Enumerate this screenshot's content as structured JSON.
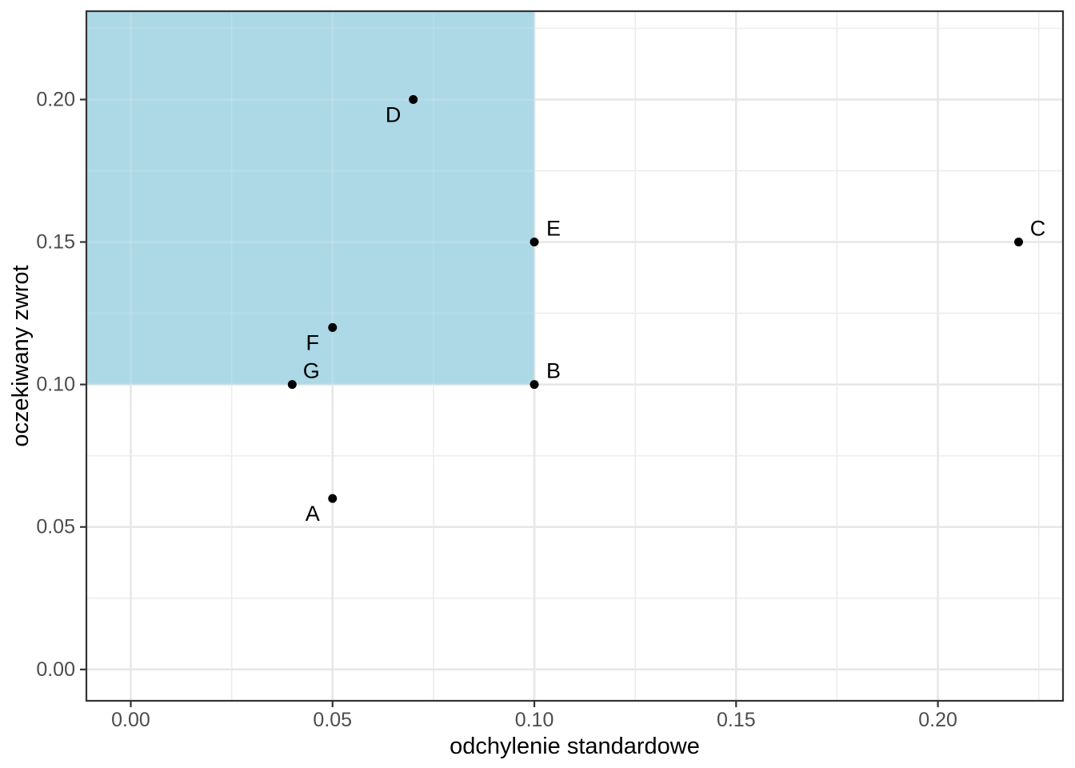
{
  "chart_data": {
    "type": "scatter",
    "title": "",
    "xlabel": "odchylenie standardowe",
    "ylabel": "oczekiwany zwrot",
    "xlim": [
      -0.011,
      0.231
    ],
    "ylim": [
      -0.011,
      0.231
    ],
    "grid": "major+minor",
    "legend": "none",
    "x_ticks": [
      {
        "value": 0.0,
        "label": "0.00"
      },
      {
        "value": 0.05,
        "label": "0.05"
      },
      {
        "value": 0.1,
        "label": "0.10"
      },
      {
        "value": 0.15,
        "label": "0.15"
      },
      {
        "value": 0.2,
        "label": "0.20"
      }
    ],
    "y_ticks": [
      {
        "value": 0.0,
        "label": "0.00"
      },
      {
        "value": 0.05,
        "label": "0.05"
      },
      {
        "value": 0.1,
        "label": "0.10"
      },
      {
        "value": 0.15,
        "label": "0.15"
      },
      {
        "value": 0.2,
        "label": "0.20"
      }
    ],
    "x_minor_ticks": [
      0.025,
      0.075,
      0.125,
      0.175,
      0.225
    ],
    "y_minor_ticks": [
      0.025,
      0.075,
      0.125,
      0.175,
      0.225
    ],
    "points": [
      {
        "label": "A",
        "x": 0.05,
        "y": 0.06,
        "label_side": "left-below"
      },
      {
        "label": "B",
        "x": 0.1,
        "y": 0.1,
        "label_side": "right-above"
      },
      {
        "label": "C",
        "x": 0.22,
        "y": 0.15,
        "label_side": "right-above"
      },
      {
        "label": "D",
        "x": 0.07,
        "y": 0.2,
        "label_side": "left-below"
      },
      {
        "label": "E",
        "x": 0.1,
        "y": 0.15,
        "label_side": "right-above"
      },
      {
        "label": "F",
        "x": 0.05,
        "y": 0.12,
        "label_side": "left-below"
      },
      {
        "label": "G",
        "x": 0.04,
        "y": 0.1,
        "label_side": "right-above"
      }
    ],
    "highlight_region": {
      "x_min": null,
      "x_max": 0.1,
      "y_min": 0.1,
      "y_max": null,
      "fill": "#ADD8E6"
    },
    "colors": {
      "panel_bg": "#FFFFFF",
      "background": "#FFFFFF",
      "grid_major": "#E7E7E7",
      "grid_minor": "#EDEDED",
      "panel_border": "#333333",
      "tick": "#333333",
      "tick_label": "#4D4D4D",
      "axis_title": "#000000",
      "point": "#000000",
      "point_label": "#000000",
      "region_fill": "#ADD8E6"
    }
  }
}
